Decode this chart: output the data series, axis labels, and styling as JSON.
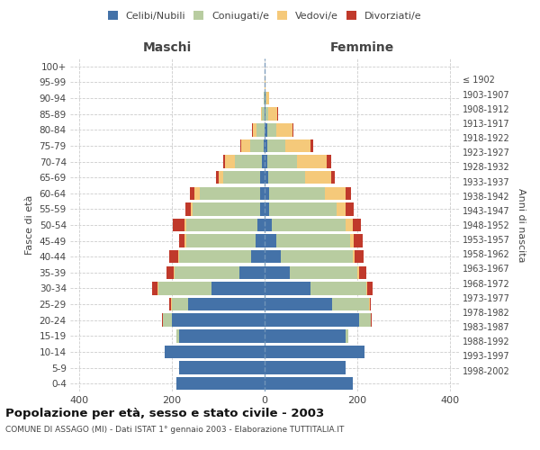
{
  "age_groups": [
    "0-4",
    "5-9",
    "10-14",
    "15-19",
    "20-24",
    "25-29",
    "30-34",
    "35-39",
    "40-44",
    "45-49",
    "50-54",
    "55-59",
    "60-64",
    "65-69",
    "70-74",
    "75-79",
    "80-84",
    "85-89",
    "90-94",
    "95-99",
    "100+"
  ],
  "birth_years": [
    "1998-2002",
    "1993-1997",
    "1988-1992",
    "1983-1987",
    "1978-1982",
    "1973-1977",
    "1968-1972",
    "1963-1967",
    "1958-1962",
    "1953-1957",
    "1948-1952",
    "1943-1947",
    "1938-1942",
    "1933-1937",
    "1928-1932",
    "1923-1927",
    "1918-1922",
    "1913-1917",
    "1908-1912",
    "1903-1907",
    "≤ 1902"
  ],
  "male": {
    "celibi": [
      190,
      185,
      215,
      185,
      200,
      165,
      115,
      55,
      30,
      20,
      15,
      10,
      10,
      10,
      5,
      2,
      0,
      0,
      0,
      0,
      0
    ],
    "coniugati": [
      0,
      0,
      0,
      5,
      20,
      35,
      115,
      140,
      155,
      150,
      155,
      145,
      130,
      80,
      60,
      30,
      18,
      5,
      2,
      0,
      0
    ],
    "vedovi": [
      0,
      0,
      0,
      0,
      0,
      2,
      2,
      2,
      2,
      3,
      3,
      5,
      12,
      10,
      20,
      18,
      8,
      3,
      0,
      0,
      0
    ],
    "divorziati": [
      0,
      0,
      0,
      0,
      2,
      5,
      12,
      15,
      20,
      12,
      25,
      12,
      10,
      5,
      5,
      2,
      2,
      0,
      0,
      0,
      0
    ]
  },
  "female": {
    "nubili": [
      190,
      175,
      215,
      175,
      205,
      145,
      100,
      55,
      35,
      25,
      15,
      10,
      10,
      8,
      5,
      5,
      5,
      2,
      2,
      0,
      0
    ],
    "coniugate": [
      0,
      0,
      0,
      5,
      25,
      80,
      120,
      145,
      155,
      160,
      160,
      145,
      120,
      80,
      65,
      40,
      20,
      5,
      2,
      0,
      0
    ],
    "vedove": [
      0,
      0,
      0,
      0,
      0,
      2,
      2,
      5,
      5,
      8,
      15,
      20,
      45,
      55,
      65,
      55,
      35,
      20,
      5,
      2,
      0
    ],
    "divorziate": [
      0,
      0,
      0,
      0,
      2,
      3,
      12,
      15,
      18,
      18,
      18,
      18,
      12,
      8,
      8,
      5,
      3,
      2,
      0,
      0,
      0
    ]
  },
  "colors": {
    "celibi": "#4472a8",
    "coniugati": "#b8cca0",
    "vedovi": "#f5c97a",
    "divorziati": "#c0392b"
  },
  "title": "Popolazione per età, sesso e stato civile - 2003",
  "subtitle": "COMUNE DI ASSAGO (MI) - Dati ISTAT 1° gennaio 2003 - Elaborazione TUTTITALIA.IT",
  "xlabel_left": "Maschi",
  "xlabel_right": "Femmine",
  "ylabel_left": "Fasce di età",
  "ylabel_right": "Anni di nascita",
  "xlim": 420,
  "background_color": "#ffffff",
  "grid_color": "#cccccc"
}
